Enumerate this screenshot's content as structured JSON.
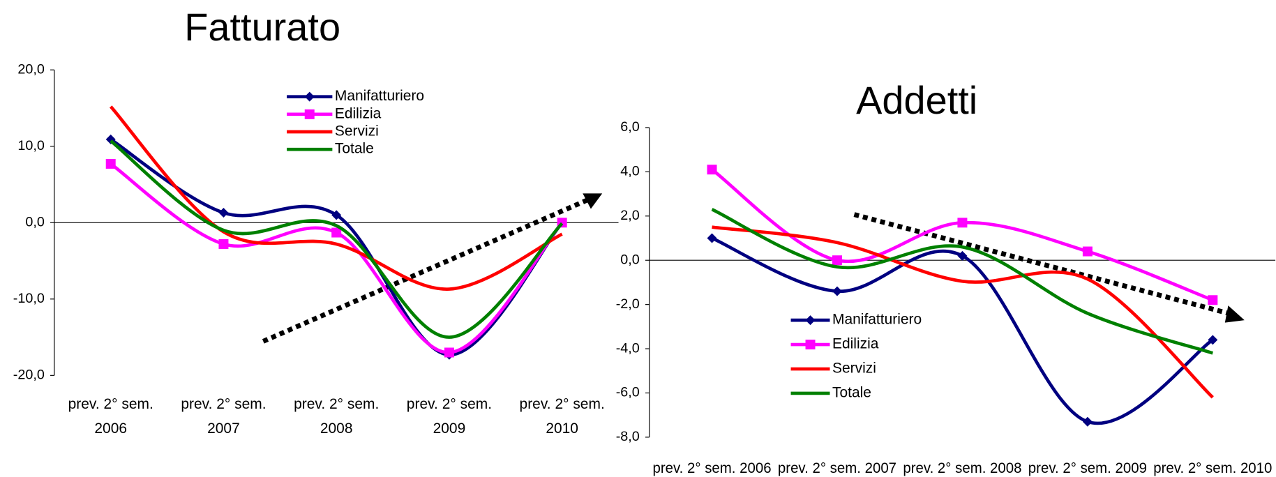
{
  "chart_data": [
    {
      "type": "line",
      "title": "Fatturato",
      "categories": [
        "prev. 2° sem. 2006",
        "prev. 2° sem. 2007",
        "prev. 2° sem. 2008",
        "prev. 2° sem. 2009",
        "prev. 2° sem. 2010"
      ],
      "ylim": [
        -20,
        20
      ],
      "yticks": [
        {
          "value": -20,
          "label": "-20,0"
        },
        {
          "value": -10,
          "label": "-10,0"
        },
        {
          "value": 0,
          "label": "0,0"
        },
        {
          "value": 10,
          "label": "10,0"
        },
        {
          "value": 20,
          "label": "20,0"
        }
      ],
      "series": [
        {
          "name": "Manifatturiero",
          "color": "#000080",
          "marker": "diamond",
          "values": [
            10.9,
            1.3,
            1.0,
            -17.3,
            0.0
          ]
        },
        {
          "name": "Edilizia",
          "color": "#ff00ff",
          "marker": "square",
          "values": [
            7.7,
            -2.8,
            -1.3,
            -17.0,
            0.0
          ]
        },
        {
          "name": "Servizi",
          "color": "#ff0000",
          "marker": "none",
          "values": [
            15.2,
            -1.2,
            -2.8,
            -8.7,
            -1.5
          ]
        },
        {
          "name": "Totale",
          "color": "#008000",
          "marker": "none",
          "values": [
            10.7,
            -1.0,
            -0.4,
            -15.0,
            -0.1
          ]
        }
      ]
    },
    {
      "type": "line",
      "title": "Addetti",
      "categories": [
        "prev. 2° sem. 2006",
        "prev. 2° sem. 2007",
        "prev. 2° sem. 2008",
        "prev. 2° sem. 2009",
        "prev. 2° sem. 2010"
      ],
      "ylim": [
        -8,
        6
      ],
      "yticks": [
        {
          "value": -8,
          "label": "-8,0"
        },
        {
          "value": -6,
          "label": "-6,0"
        },
        {
          "value": -4,
          "label": "-4,0"
        },
        {
          "value": -2,
          "label": "-2,0"
        },
        {
          "value": 0,
          "label": "0,0"
        },
        {
          "value": 2,
          "label": "2,0"
        },
        {
          "value": 4,
          "label": "4,0"
        },
        {
          "value": 6,
          "label": "6,0"
        }
      ],
      "series": [
        {
          "name": "Manifatturiero",
          "color": "#000080",
          "marker": "diamond",
          "values": [
            1.0,
            -1.4,
            0.2,
            -7.3,
            -3.6
          ]
        },
        {
          "name": "Edilizia",
          "color": "#ff00ff",
          "marker": "square",
          "values": [
            4.1,
            0.0,
            1.7,
            0.4,
            -1.8
          ]
        },
        {
          "name": "Servizi",
          "color": "#ff0000",
          "marker": "none",
          "values": [
            1.5,
            0.8,
            -0.95,
            -0.85,
            -6.2
          ]
        },
        {
          "name": "Totale",
          "color": "#008000",
          "marker": "none",
          "values": [
            2.3,
            -0.3,
            0.6,
            -2.4,
            -4.2
          ]
        }
      ]
    }
  ]
}
